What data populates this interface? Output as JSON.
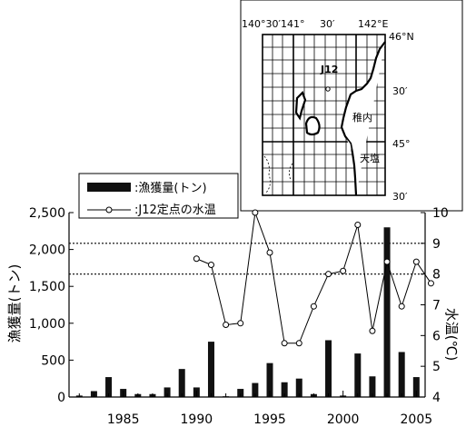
{
  "chart_data": {
    "type": "bar+line",
    "x": [
      1982,
      1983,
      1984,
      1985,
      1986,
      1987,
      1988,
      1989,
      1990,
      1991,
      1992,
      1993,
      1994,
      1995,
      1996,
      1997,
      1998,
      1999,
      2000,
      2001,
      2002,
      2003,
      2004,
      2005
    ],
    "x_ticks": [
      "1985",
      "1990",
      "1995",
      "2000",
      "2005"
    ],
    "series": [
      {
        "name": ":漁獲量(トン)",
        "type": "bar",
        "axis": "left",
        "color": "#111111",
        "values": [
          20,
          80,
          270,
          110,
          40,
          40,
          130,
          380,
          130,
          750,
          10,
          110,
          190,
          460,
          200,
          250,
          40,
          770,
          20,
          590,
          280,
          2300,
          610,
          270
        ]
      },
      {
        "name": ":J12定点の水温",
        "type": "line",
        "axis": "right",
        "color": "#000000",
        "marker": "open-circle",
        "points": [
          [
            1990,
            8.5
          ],
          [
            1991,
            8.3
          ],
          [
            1992,
            6.35
          ],
          [
            1993,
            6.4
          ],
          [
            1994,
            10.0
          ],
          [
            1995,
            8.7
          ],
          [
            1996,
            5.75
          ],
          [
            1997,
            5.75
          ],
          [
            1998,
            6.95
          ],
          [
            1999,
            8.0
          ],
          [
            2000,
            8.1
          ],
          [
            2001,
            9.6
          ],
          [
            2002,
            6.15
          ],
          [
            2003,
            8.4
          ],
          [
            2004,
            6.95
          ],
          [
            2005,
            8.4
          ],
          [
            2006,
            7.7
          ]
        ]
      }
    ],
    "ylabel_left": "漁獲量(トン)",
    "ylabel_right": "水温(℃)",
    "yticks_left": [
      "0",
      "500",
      "1,000",
      "1,500",
      "2,000",
      "2,500"
    ],
    "yticks_right": [
      "4",
      "5",
      "6",
      "7",
      "8",
      "9",
      "10"
    ],
    "ylim_left": [
      0,
      2500
    ],
    "ylim_right": [
      4,
      10
    ],
    "xlim": [
      1981.3,
      2005.6
    ],
    "reference_lines_right_axis": [
      9,
      8
    ],
    "legend_position": "top-left",
    "inset_map": {
      "top_labels": [
        "140°30′141°",
        "30′",
        "142°E"
      ],
      "right_labels": [
        "46°N",
        "30′",
        "45°",
        "30′"
      ],
      "station_label": "J12",
      "place_labels": [
        "稚内",
        "天塩"
      ]
    }
  }
}
